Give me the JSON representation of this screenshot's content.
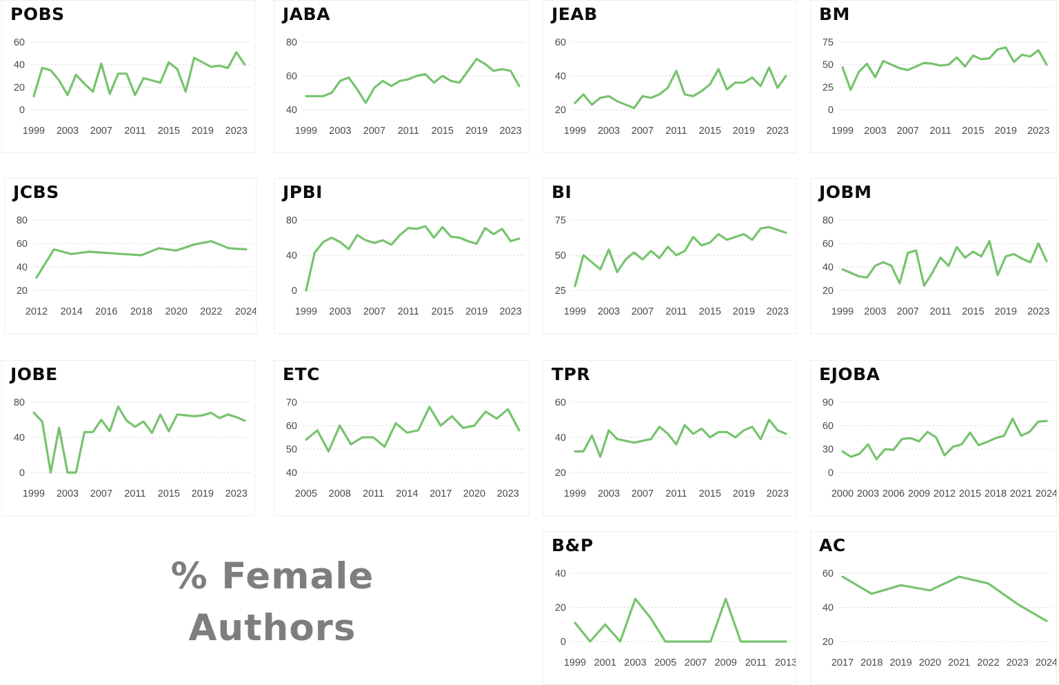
{
  "page": {
    "title_line1": "% Female",
    "title_line2": "Authors"
  },
  "colors": {
    "line": "#77c36e",
    "grid": "#cccccc",
    "tick": "#4a4a4a",
    "title": "#0d0d0d",
    "big_text": "#7e7e7e",
    "border": "#eeeeee"
  },
  "chart_data": [
    {
      "name": "POBS",
      "type": "line",
      "x_start": 1999,
      "x_end": 2024,
      "x_ticks": [
        1999,
        2003,
        2007,
        2011,
        2015,
        2019,
        2023
      ],
      "y_ticks": [
        0,
        20,
        40,
        60
      ],
      "ylim": [
        0,
        60
      ],
      "values": [
        12,
        37,
        35,
        26,
        13,
        31,
        23,
        16,
        41,
        14,
        32,
        32,
        13,
        28,
        26,
        24,
        42,
        36,
        16,
        46,
        42,
        38,
        39,
        37,
        51,
        40
      ]
    },
    {
      "name": "JABA",
      "type": "line",
      "x_start": 1999,
      "x_end": 2024,
      "x_ticks": [
        1999,
        2003,
        2007,
        2011,
        2015,
        2019,
        2023
      ],
      "y_ticks": [
        40,
        60,
        80
      ],
      "ylim": [
        40,
        80
      ],
      "values": [
        48,
        48,
        48,
        50,
        57,
        59,
        52,
        44,
        53,
        57,
        54,
        57,
        58,
        60,
        61,
        56,
        60,
        57,
        56,
        63,
        70,
        67,
        63,
        64,
        63,
        54
      ]
    },
    {
      "name": "JEAB",
      "type": "line",
      "x_start": 1999,
      "x_end": 2024,
      "x_ticks": [
        1999,
        2003,
        2007,
        2011,
        2015,
        2019,
        2023
      ],
      "y_ticks": [
        20,
        40,
        60
      ],
      "ylim": [
        20,
        60
      ],
      "values": [
        24,
        29,
        23,
        27,
        28,
        25,
        23,
        21,
        28,
        27,
        29,
        33,
        43,
        29,
        28,
        31,
        35,
        44,
        32,
        36,
        36,
        39,
        34,
        45,
        33,
        40
      ]
    },
    {
      "name": "BM",
      "type": "line",
      "x_start": 1999,
      "x_end": 2024,
      "x_ticks": [
        1999,
        2003,
        2007,
        2011,
        2015,
        2019,
        2023
      ],
      "y_ticks": [
        0,
        25,
        50,
        75
      ],
      "ylim": [
        0,
        75
      ],
      "values": [
        47,
        22,
        42,
        51,
        36,
        54,
        50,
        46,
        44,
        48,
        52,
        51,
        49,
        50,
        58,
        48,
        60,
        56,
        57,
        67,
        69,
        53,
        61,
        59,
        66,
        50
      ]
    },
    {
      "name": "JCBS",
      "type": "line",
      "x_start": 2012,
      "x_end": 2024,
      "x_ticks": [
        2012,
        2014,
        2016,
        2018,
        2020,
        2022,
        2024
      ],
      "y_ticks": [
        20,
        40,
        60,
        80
      ],
      "ylim": [
        20,
        80
      ],
      "values": [
        31,
        55,
        51,
        53,
        52,
        51,
        50,
        56,
        54,
        59,
        62,
        56,
        55
      ]
    },
    {
      "name": "JPBI",
      "type": "line",
      "x_start": 1999,
      "x_end": 2024,
      "x_ticks": [
        1999,
        2003,
        2007,
        2011,
        2015,
        2019,
        2023
      ],
      "y_ticks": [
        0,
        40,
        80
      ],
      "ylim": [
        0,
        80
      ],
      "values": [
        0,
        43,
        55,
        60,
        55,
        47,
        63,
        57,
        54,
        57,
        52,
        63,
        71,
        70,
        73,
        60,
        72,
        61,
        60,
        56,
        53,
        71,
        64,
        70,
        56,
        59
      ]
    },
    {
      "name": "BI",
      "type": "line",
      "x_start": 1999,
      "x_end": 2024,
      "x_ticks": [
        1999,
        2003,
        2007,
        2011,
        2015,
        2019,
        2023
      ],
      "y_ticks": [
        25,
        50,
        75
      ],
      "ylim": [
        25,
        75
      ],
      "values": [
        28,
        50,
        45,
        40,
        54,
        38,
        47,
        52,
        47,
        53,
        48,
        56,
        50,
        53,
        63,
        57,
        59,
        65,
        61,
        63,
        65,
        61,
        69,
        70,
        68,
        66
      ]
    },
    {
      "name": "JOBM",
      "type": "line",
      "x_start": 1999,
      "x_end": 2024,
      "x_ticks": [
        1999,
        2003,
        2007,
        2011,
        2015,
        2019,
        2023
      ],
      "y_ticks": [
        20,
        40,
        60,
        80
      ],
      "ylim": [
        20,
        80
      ],
      "values": [
        38,
        35,
        32,
        31,
        41,
        44,
        41,
        26,
        52,
        54,
        24,
        35,
        48,
        41,
        57,
        48,
        53,
        49,
        62,
        33,
        49,
        51,
        47,
        44,
        60,
        45
      ]
    },
    {
      "name": "JOBE",
      "type": "line",
      "x_start": 1999,
      "x_end": 2024,
      "x_ticks": [
        1999,
        2003,
        2007,
        2011,
        2015,
        2019,
        2023
      ],
      "y_ticks": [
        0,
        40,
        80
      ],
      "ylim": [
        0,
        80
      ],
      "values": [
        68,
        58,
        0,
        51,
        0,
        0,
        46,
        46,
        60,
        47,
        75,
        59,
        52,
        58,
        45,
        66,
        47,
        66,
        65,
        64,
        65,
        68,
        62,
        66,
        63,
        59
      ]
    },
    {
      "name": "ETC",
      "type": "line",
      "x_start": 2005,
      "x_end": 2024,
      "x_ticks": [
        2005,
        2008,
        2011,
        2014,
        2017,
        2020,
        2023
      ],
      "y_ticks": [
        40,
        50,
        60,
        70
      ],
      "ylim": [
        40,
        70
      ],
      "values": [
        54,
        58,
        49,
        60,
        52,
        55,
        55,
        51,
        61,
        57,
        58,
        68,
        60,
        64,
        59,
        60,
        66,
        63,
        67,
        58
      ]
    },
    {
      "name": "TPR",
      "type": "line",
      "x_start": 1999,
      "x_end": 2024,
      "x_ticks": [
        1999,
        2003,
        2007,
        2011,
        2015,
        2019,
        2023
      ],
      "y_ticks": [
        20,
        40,
        60
      ],
      "ylim": [
        20,
        60
      ],
      "values": [
        32,
        32,
        41,
        29,
        44,
        39,
        38,
        37,
        38,
        39,
        46,
        42,
        36,
        47,
        42,
        45,
        40,
        43,
        43,
        40,
        44,
        46,
        39,
        50,
        44,
        42
      ]
    },
    {
      "name": "EJOBA",
      "type": "line",
      "x_start": 2000,
      "x_end": 2024,
      "x_ticks": [
        2000,
        2003,
        2006,
        2009,
        2012,
        2015,
        2018,
        2021,
        2024
      ],
      "y_ticks": [
        0,
        30,
        60,
        90
      ],
      "ylim": [
        0,
        90
      ],
      "values": [
        27,
        20,
        24,
        36,
        17,
        30,
        29,
        43,
        44,
        40,
        52,
        45,
        22,
        33,
        36,
        51,
        35,
        39,
        44,
        47,
        69,
        47,
        52,
        65,
        66
      ]
    },
    {
      "name": "B&P",
      "type": "line",
      "x_start": 1999,
      "x_end": 2013,
      "x_ticks": [
        1999,
        2001,
        2003,
        2005,
        2007,
        2009,
        2011,
        2013
      ],
      "y_ticks": [
        0,
        20,
        40
      ],
      "ylim": [
        0,
        40
      ],
      "values": [
        11,
        0,
        10,
        0,
        25,
        14,
        0,
        0,
        0,
        0,
        25,
        0,
        0,
        0,
        0
      ]
    },
    {
      "name": "AC",
      "type": "line",
      "x_start": 2017,
      "x_end": 2024,
      "x_ticks": [
        2017,
        2018,
        2019,
        2020,
        2021,
        2022,
        2023,
        2024
      ],
      "y_ticks": [
        20,
        40,
        60
      ],
      "ylim": [
        20,
        60
      ],
      "values": [
        58,
        48,
        53,
        50,
        58,
        54,
        42,
        32
      ]
    }
  ]
}
